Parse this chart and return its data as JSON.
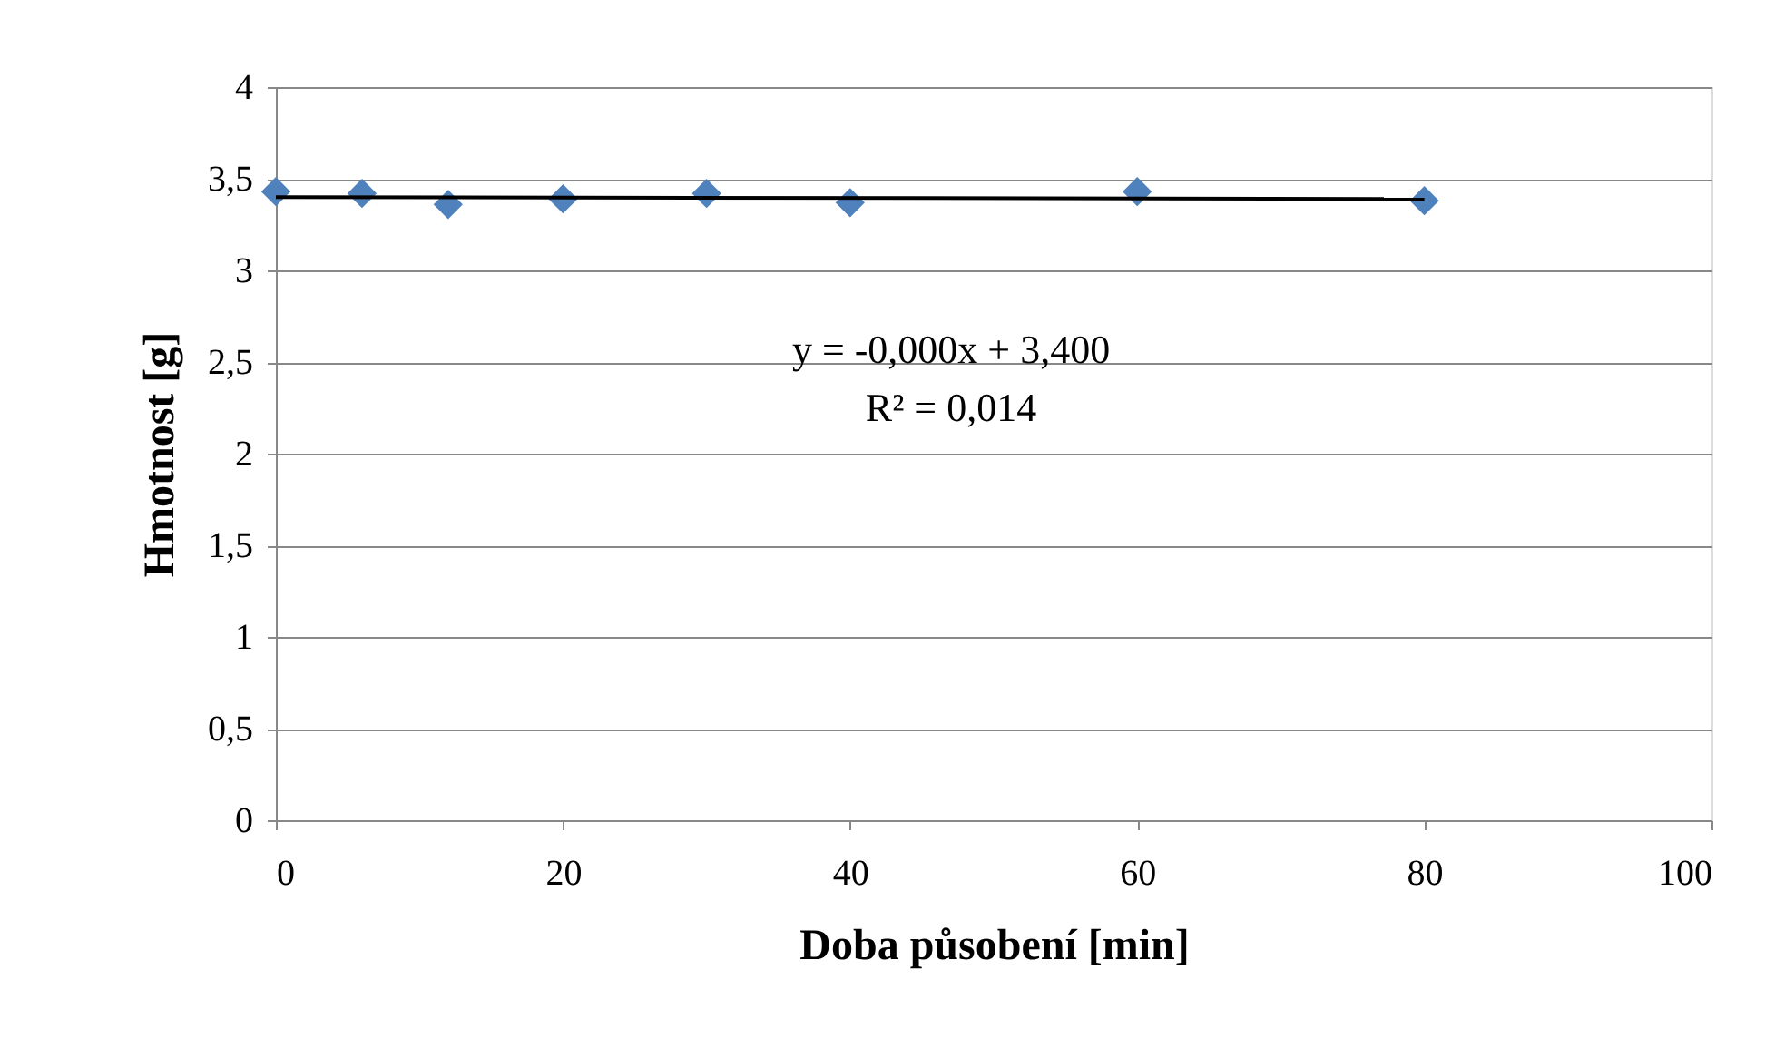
{
  "chart_data": {
    "type": "scatter",
    "xlabel": "Doba působení [min]",
    "ylabel": "Hmotnost [g]",
    "annotations": [
      "y = -0,000x + 3,400",
      "R² = 0,014"
    ],
    "series": [
      {
        "color": "#4f81bd",
        "marker": "diamond",
        "x": [
          0,
          6,
          12,
          20,
          30,
          40,
          60,
          80
        ],
        "values": [
          3.43,
          3.42,
          3.36,
          3.39,
          3.42,
          3.37,
          3.43,
          3.38
        ]
      },
      {
        "type": "line",
        "color": "#000000",
        "x": [
          0,
          80
        ],
        "values": [
          3.4,
          3.39
        ]
      }
    ],
    "xlim": [
      0,
      100
    ],
    "xticks": [
      0,
      20,
      40,
      60,
      80,
      100
    ],
    "ylim": [
      0,
      4
    ],
    "yticks": [
      0,
      {
        "value": 0.5,
        "label": "0,5"
      },
      1,
      {
        "value": 1.5,
        "label": "1,5"
      },
      2,
      {
        "value": 2.5,
        "label": "2,5"
      },
      3,
      {
        "value": 3.5,
        "label": "3,5"
      },
      4
    ],
    "grid": "y"
  }
}
